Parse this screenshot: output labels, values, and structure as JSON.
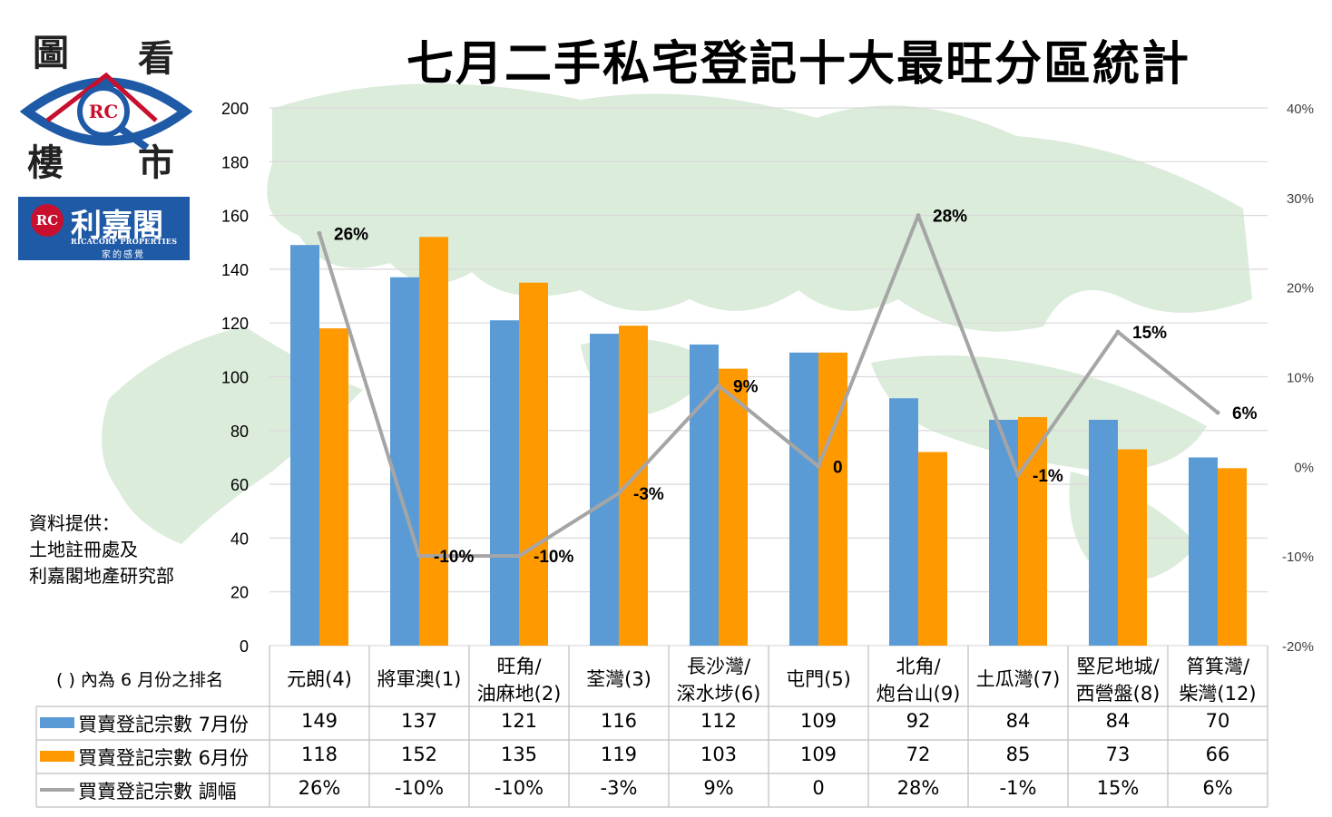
{
  "header": {
    "title": "七月二手私宅登記十大最旺分區統計"
  },
  "logo": {
    "chars": [
      "圖",
      "看",
      "樓",
      "市"
    ],
    "mark": "RC"
  },
  "brand": {
    "name": "利嘉閣",
    "english": "RICACORP PROPERTIES",
    "slogan": "家的感覺"
  },
  "source": {
    "line1": "資料提供：",
    "line2": "土地註冊處及",
    "line3": "利嘉閣地產研究部"
  },
  "table": {
    "rank_note": "( ) 內為 6 月份之排名",
    "row_labels": [
      "買賣登記宗數 7月份",
      "買賣登記宗數 6月份",
      "買賣登記宗數 調幅"
    ],
    "change_text": [
      "26%",
      "-10%",
      "-10%",
      "-3%",
      "9%",
      "0",
      "28%",
      "-1%",
      "15%",
      "6%"
    ]
  },
  "colors": {
    "july": "#5b9bd5",
    "june": "#ff9900",
    "change": "#a5a5a5",
    "brand": "#1f5aa6",
    "map": "#cfe6cf"
  },
  "chart_data": {
    "type": "bar",
    "categories": [
      [
        "元朗(4)"
      ],
      [
        "將軍澳(1)"
      ],
      [
        "旺角/",
        "油麻地(2)"
      ],
      [
        "荃灣(3)"
      ],
      [
        "長沙灣/",
        "深水埗(6)"
      ],
      [
        "屯門(5)"
      ],
      [
        "北角/",
        "炮台山(9)"
      ],
      [
        "土瓜灣(7)"
      ],
      [
        "堅尼地城/",
        "西營盤(8)"
      ],
      [
        "筲箕灣/",
        "柴灣(12)"
      ]
    ],
    "series": [
      {
        "name": "買賣登記宗數 7月份",
        "type": "bar",
        "axis": "left",
        "values": [
          149,
          137,
          121,
          116,
          112,
          109,
          92,
          84,
          84,
          70
        ]
      },
      {
        "name": "買賣登記宗數 6月份",
        "type": "bar",
        "axis": "left",
        "values": [
          118,
          152,
          135,
          119,
          103,
          109,
          72,
          85,
          73,
          66
        ]
      },
      {
        "name": "買賣登記宗數 調幅",
        "type": "line",
        "axis": "right",
        "values": [
          26,
          -10,
          -10,
          -3,
          9,
          0,
          28,
          -1,
          15,
          6
        ],
        "labels": [
          "26%",
          "-10%",
          "-10%",
          "-3%",
          "9%",
          "0",
          "28%",
          "-1%",
          "15%",
          "6%"
        ]
      }
    ],
    "ylim": [
      0,
      200
    ],
    "yticks": [
      0,
      20,
      40,
      60,
      80,
      100,
      120,
      140,
      160,
      180,
      200
    ],
    "y2lim": [
      -20,
      40
    ],
    "y2ticks": [
      "-20%",
      "-10%",
      "0%",
      "10%",
      "20%",
      "30%",
      "40%"
    ],
    "grid": true,
    "legend": "table-bottom"
  }
}
